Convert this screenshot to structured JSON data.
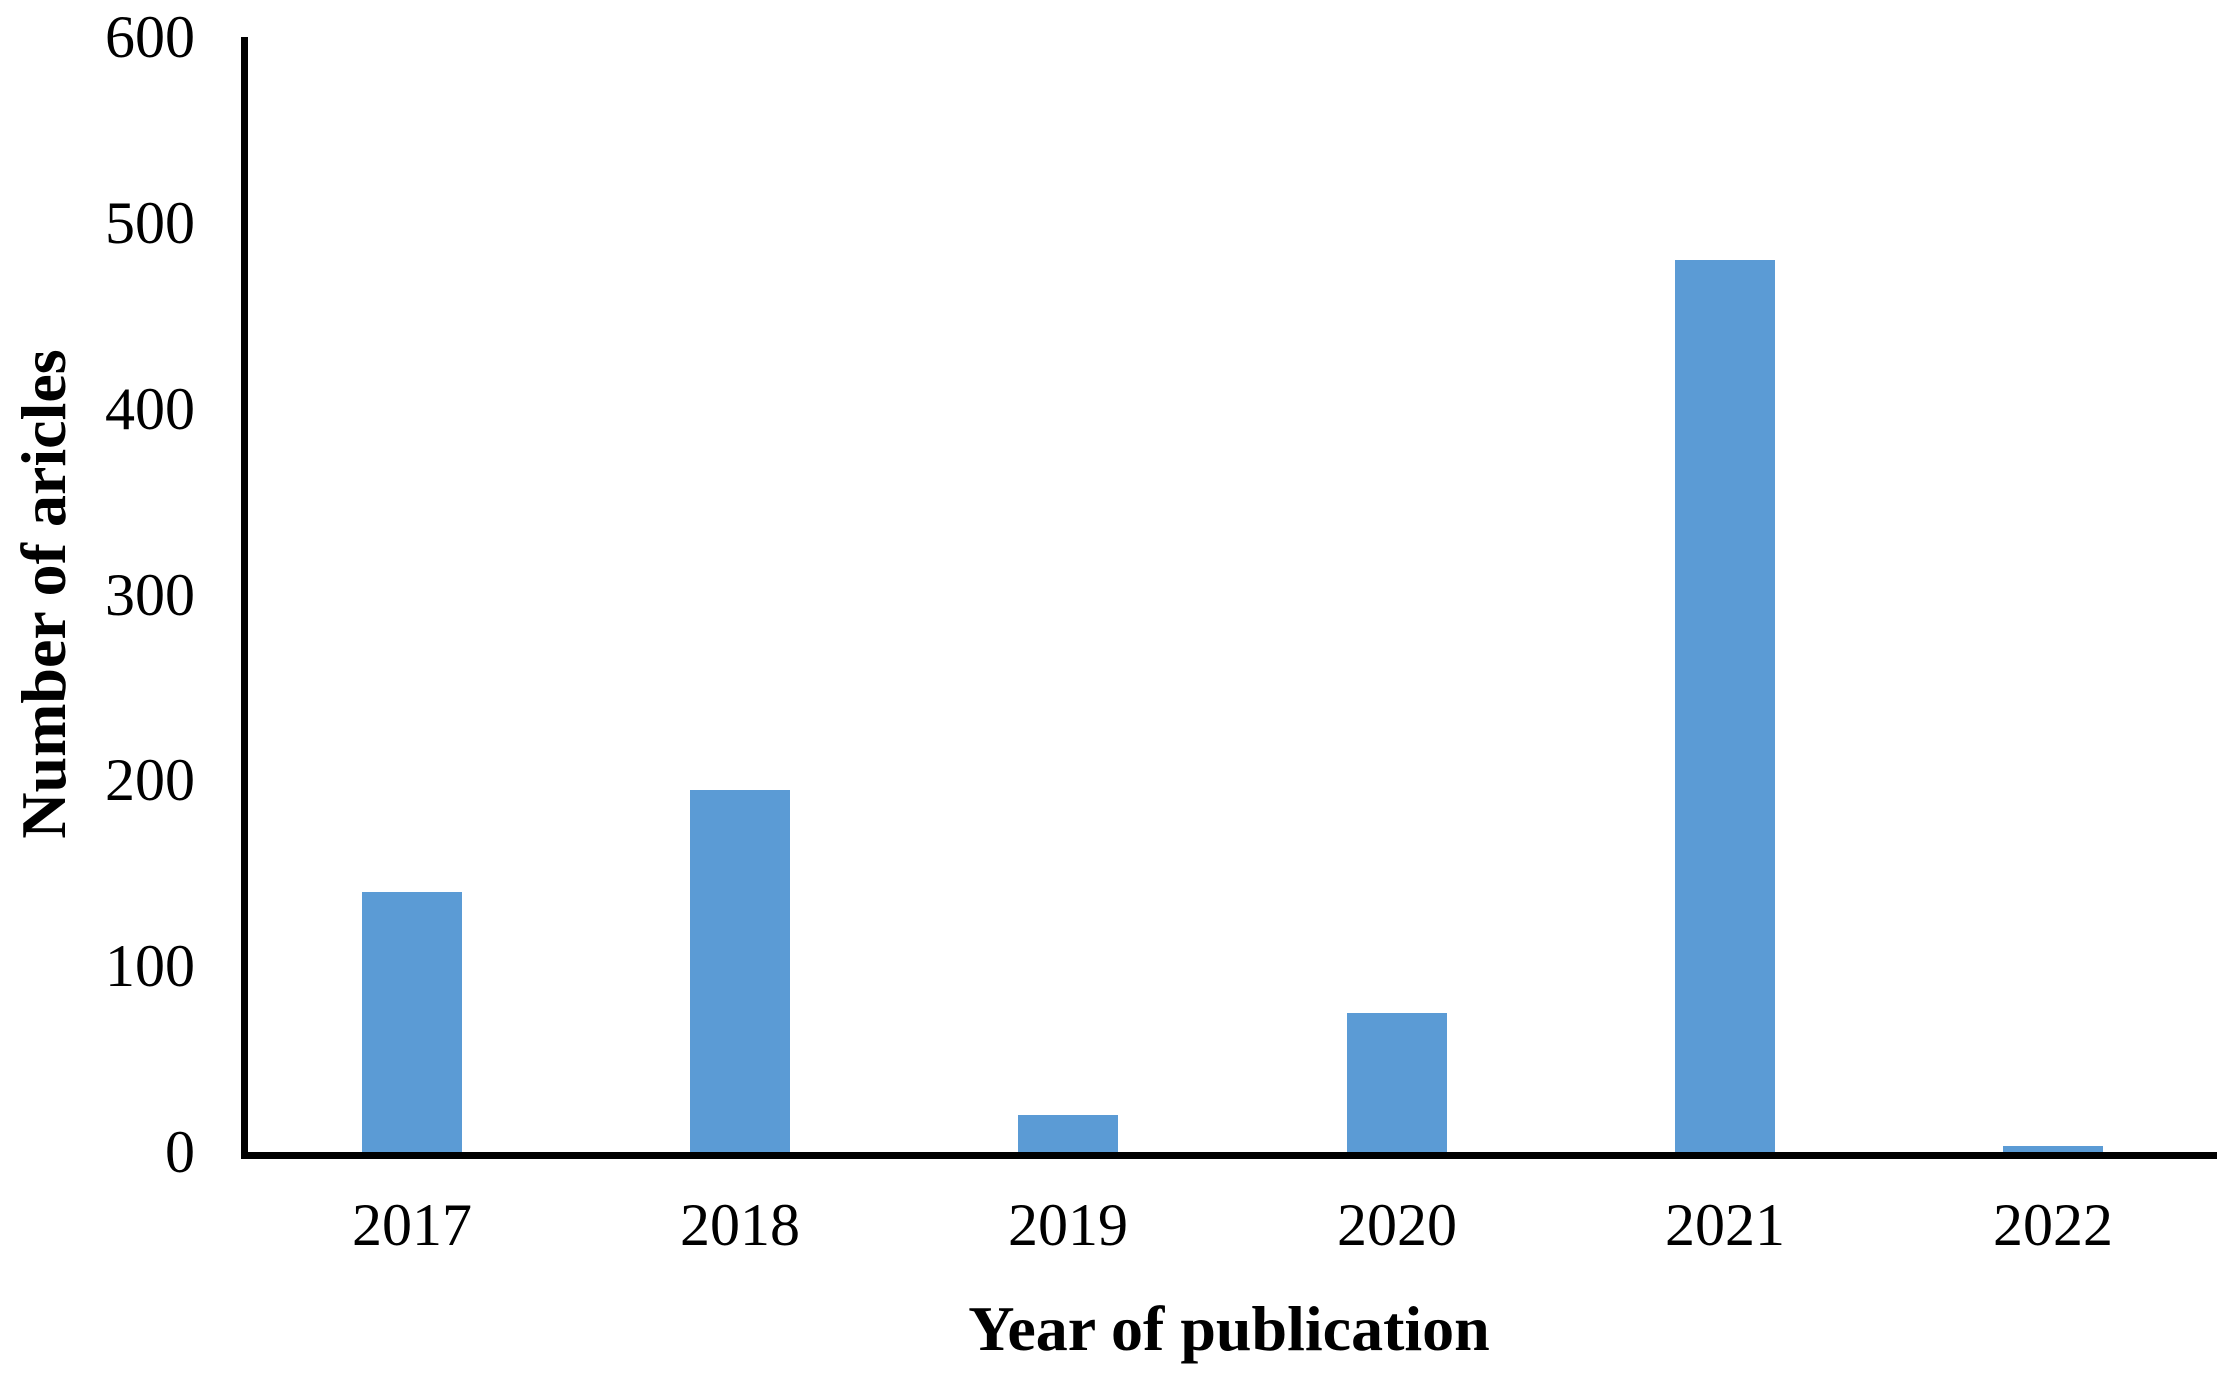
{
  "chart_data": {
    "type": "bar",
    "categories": [
      "2017",
      "2018",
      "2019",
      "2020",
      "2021",
      "2022"
    ],
    "values": [
      140,
      195,
      20,
      75,
      480,
      3
    ],
    "xlabel": "Year of publication",
    "ylabel": "Number of aricles",
    "ylim": [
      0,
      600
    ],
    "yticks": [
      0,
      100,
      200,
      300,
      400,
      500,
      600
    ],
    "bar_color": "#5B9BD5",
    "axis_color": "#000000",
    "grid": false,
    "legend": "none"
  }
}
